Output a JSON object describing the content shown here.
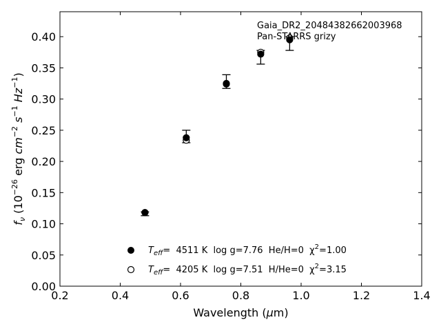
{
  "chart_data": {
    "type": "scatter",
    "title": "",
    "xlabel": "Wavelength (μm)",
    "ylabel": "f_ν (10^-26 erg cm^-2 s^-1 Hz^-1)",
    "xlim": [
      0.2,
      1.4
    ],
    "ylim": [
      0.0,
      0.44
    ],
    "x_ticks": [
      "0.2",
      "0.4",
      "0.6",
      "0.8",
      "1.0",
      "1.2",
      "1.4"
    ],
    "y_ticks": [
      "0.00",
      "0.05",
      "0.10",
      "0.15",
      "0.20",
      "0.25",
      "0.30",
      "0.35",
      "0.40"
    ],
    "annotations": [
      "Gaia_DR2_20484382662003968",
      "Pan-STARRS grizy"
    ],
    "observed": {
      "x": [
        0.482,
        0.619,
        0.752,
        0.866,
        0.962
      ],
      "y": [
        0.116,
        0.24,
        0.328,
        0.367,
        0.389
      ],
      "yerr": [
        0.003,
        0.01,
        0.011,
        0.011,
        0.011
      ]
    },
    "series": [
      {
        "marker": "filled-circle",
        "label_parts": {
          "t": "T",
          "sub": "eff",
          "rest": "=  4511 K  log g=7.76  He/H=0  χ",
          "sup": "2",
          "tail": "=1.00"
        },
        "x": [
          0.482,
          0.619,
          0.752,
          0.866,
          0.962
        ],
        "y": [
          0.118,
          0.238,
          0.325,
          0.372,
          0.395
        ]
      },
      {
        "marker": "open-circle",
        "label_parts": {
          "t": "T",
          "sub": "eff",
          "rest": "=  4205 K  log g=7.51  H/He=0  χ",
          "sup": "2",
          "tail": "=3.15"
        },
        "x": [
          0.482,
          0.619,
          0.752,
          0.866,
          0.962
        ],
        "y": [
          0.118,
          0.234,
          0.324,
          0.375,
          0.398
        ]
      }
    ],
    "grid": false,
    "legend_position": "lower-center"
  }
}
